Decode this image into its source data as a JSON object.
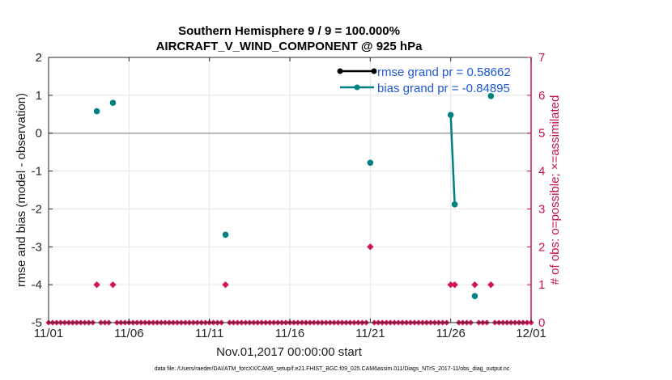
{
  "chart_data": {
    "type": "scatter",
    "title_line1": "Southern Hemisphere 9 / 9 = 100.000%",
    "title_line2": "AIRCRAFT_V_WIND_COMPONENT @ 925 hPa",
    "xlabel": "Nov.01,2017 00:00:00 start",
    "ylabel_left": "rmse and bias (model - observation)",
    "ylabel_right": "# of obs: o=possible; ×=assimilated",
    "footer": "data file: /Users/raeder/DAI/ATM_forcXX/CAM6_setup/f.e21.FHIST_BGC.f09_025.CAM6assim.011/Diags_NTrS_2017-11/obs_diag_output.nc",
    "xlim": [
      0,
      30
    ],
    "ylim_left": [
      -5,
      2
    ],
    "ylim_right": [
      0,
      7
    ],
    "x_ticks": [
      0,
      5,
      10,
      15,
      20,
      25,
      30
    ],
    "x_tick_labels": [
      "11/01",
      "11/06",
      "11/11",
      "11/16",
      "11/21",
      "11/26",
      "12/01"
    ],
    "y_left_ticks": [
      -5,
      -4,
      -3,
      -2,
      -1,
      0,
      1,
      2
    ],
    "y_left_tick_labels": [
      "-5",
      "-4",
      "-3",
      "-2",
      "-1",
      "0",
      "1",
      "2"
    ],
    "y_right_ticks": [
      0,
      1,
      2,
      3,
      4,
      5,
      6,
      7
    ],
    "y_right_tick_labels": [
      "0",
      "1",
      "2",
      "3",
      "4",
      "5",
      "6",
      "7"
    ],
    "zero_line": 0,
    "legend": {
      "placement": "top-right",
      "entries": [
        {
          "label": "rmse grand pr = 0.58662",
          "color": "#000000"
        },
        {
          "label": "bias grand pr = -0.84895",
          "color": "#008080"
        }
      ]
    },
    "colors": {
      "rmse": "#000000",
      "bias": "#008080",
      "obs": "#d4145a",
      "axis_right": "#c8104f",
      "legend_text": "#1c58d8",
      "zero_line": "#a0a0a0"
    },
    "series": [
      {
        "name": "bias",
        "points": [
          {
            "x": 3.0,
            "y": 0.58
          },
          {
            "x": 4.0,
            "y": 0.8
          },
          {
            "x": 11.0,
            "y": -2.68
          },
          {
            "x": 20.0,
            "y": -0.78
          },
          {
            "x": 25.0,
            "y": 0.48
          },
          {
            "x": 25.25,
            "y": -1.88
          },
          {
            "x": 26.5,
            "y": -4.3
          },
          {
            "x": 27.5,
            "y": 0.98
          }
        ],
        "connected_segments": [
          [
            25.0,
            25.25
          ]
        ]
      },
      {
        "name": "obs_possible",
        "points": [
          {
            "x": 3.0,
            "y": 1
          },
          {
            "x": 4.0,
            "y": 1
          },
          {
            "x": 11.0,
            "y": 1
          },
          {
            "x": 20.0,
            "y": 2
          },
          {
            "x": 25.0,
            "y": 1
          },
          {
            "x": 25.25,
            "y": 1
          },
          {
            "x": 26.5,
            "y": 1
          },
          {
            "x": 27.5,
            "y": 1
          }
        ],
        "baseline": 0,
        "baseline_step": 0.25
      }
    ]
  }
}
